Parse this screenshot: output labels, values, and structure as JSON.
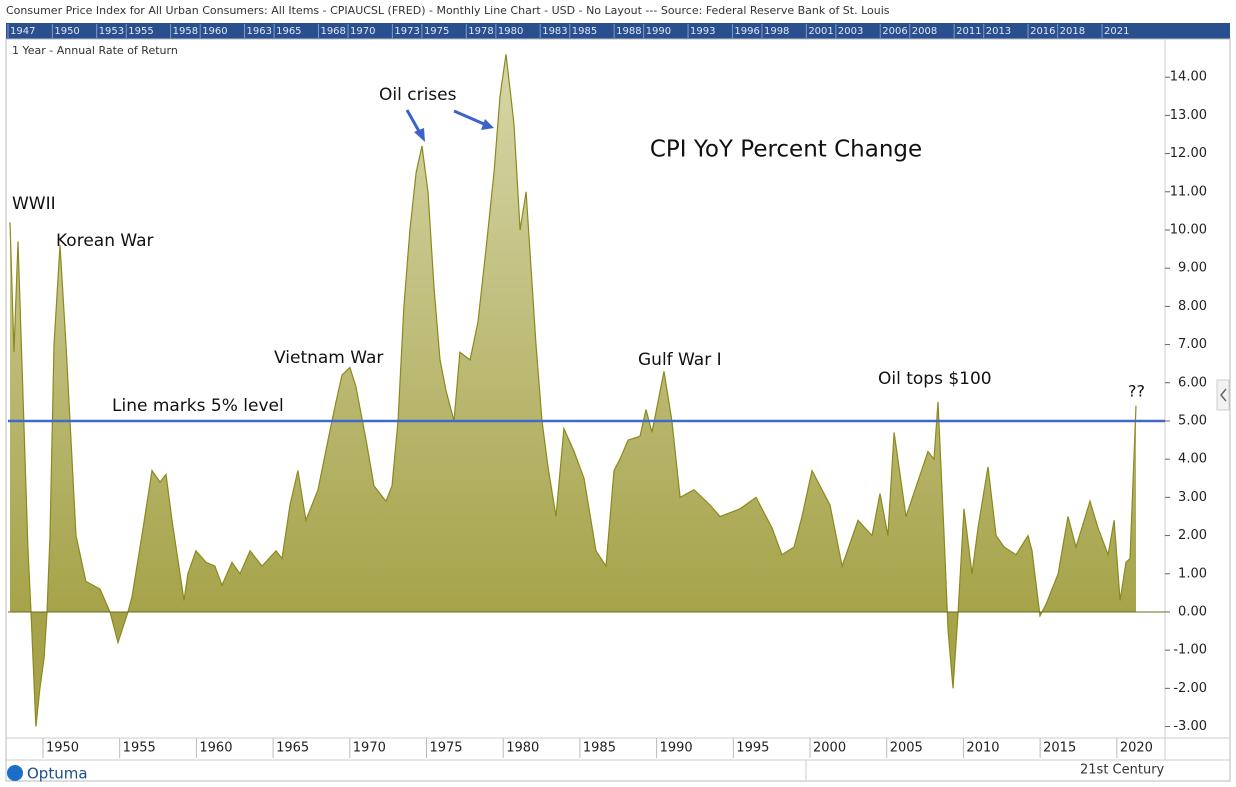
{
  "chart_data": {
    "type": "area",
    "header": "Consumer Price Index for All Urban Consumers: All Items - CPIAUCSL (FRED) - Monthly Line Chart - USD - No Layout --- Source: Federal Reserve Bank of St. Louis",
    "subtitle": "1 Year - Annual Rate of Return",
    "title": "CPI YoY Percent Change",
    "logo": "Optuma",
    "footer": "21st Century",
    "color": "#8a8a1e",
    "fill_top": "#d6d6a8",
    "fill_bottom": "#a6a34a",
    "reference_line": 5,
    "reference_color": "#4169c8",
    "navigator_ticks": [
      1947,
      1950,
      1953,
      1955,
      1958,
      1960,
      1963,
      1965,
      1968,
      1970,
      1973,
      1975,
      1978,
      1980,
      1983,
      1985,
      1988,
      1990,
      1993,
      1996,
      1998,
      2001,
      2003,
      2006,
      2008,
      2011,
      2013,
      2016,
      2018,
      2021
    ],
    "annotations": [
      "WWII",
      "Korean War",
      "Vietnam War",
      "Oil crises",
      "Line marks 5% level",
      "Gulf War I",
      "Oil tops $100",
      "??"
    ],
    "xlim": [
      1947.72,
      2023.14
    ],
    "xticks": [
      1950,
      1955,
      1960,
      1965,
      1970,
      1975,
      1980,
      1985,
      1990,
      1995,
      2000,
      2005,
      2010,
      2015,
      2020
    ],
    "ylim": [
      -3.3,
      15.0
    ],
    "yticks": [
      {
        "value": 14,
        "label": "14.00"
      },
      {
        "value": 13,
        "label": "13.00"
      },
      {
        "value": 12,
        "label": "12.00"
      },
      {
        "value": 11,
        "label": "11.00"
      },
      {
        "value": 10,
        "label": "10.00"
      },
      {
        "value": 9,
        "label": "9.00"
      },
      {
        "value": 8,
        "label": "8.00"
      },
      {
        "value": 7,
        "label": "7.00"
      },
      {
        "value": 6,
        "label": "6.00"
      },
      {
        "value": 5,
        "label": "5.00"
      },
      {
        "value": 4,
        "label": "4.00"
      },
      {
        "value": 3,
        "label": "3.00"
      },
      {
        "value": 2,
        "label": "2.00"
      },
      {
        "value": 1,
        "label": "1.00"
      },
      {
        "value": 0,
        "label": "0.00"
      },
      {
        "value": -1,
        "label": "-1.00"
      },
      {
        "value": -2,
        "label": "-2.00"
      },
      {
        "value": -3,
        "label": "-3.00"
      }
    ],
    "x": [
      1947.85,
      1948.11,
      1948.37,
      1949.02,
      1949.22,
      1949.54,
      1949.8,
      1950.07,
      1950.26,
      1950.46,
      1950.72,
      1951.11,
      1951.5,
      1952.15,
      1952.8,
      1953.72,
      1954.37,
      1954.89,
      1955.54,
      1955.8,
      1956.45,
      1957.11,
      1957.63,
      1958.02,
      1958.41,
      1959.19,
      1959.45,
      1959.97,
      1960.63,
      1961.21,
      1961.67,
      1962.32,
      1962.84,
      1963.5,
      1964.28,
      1965.19,
      1965.58,
      1966.1,
      1966.62,
      1967.14,
      1967.93,
      1968.58,
      1969.1,
      1969.49,
      1970.01,
      1970.4,
      1971.06,
      1971.58,
      1972.36,
      1972.75,
      1973.14,
      1973.53,
      1973.92,
      1974.32,
      1974.71,
      1975.1,
      1975.49,
      1975.88,
      1976.27,
      1976.79,
      1977.18,
      1977.84,
      1978.36,
      1978.88,
      1979.4,
      1979.79,
      1980.18,
      1980.7,
      1981.1,
      1981.49,
      1982.14,
      1982.53,
      1982.92,
      1983.44,
      1983.96,
      1984.62,
      1985.27,
      1986.05,
      1986.7,
      1987.22,
      1987.61,
      1988.14,
      1988.92,
      1989.31,
      1989.7,
      1990.48,
      1991.0,
      1991.53,
      1992.44,
      1993.48,
      1994.13,
      1995.44,
      1996.48,
      1997.52,
      1998.17,
      1998.96,
      1999.48,
      2000.13,
      2001.3,
      2002.09,
      2003.13,
      2004.04,
      2004.56,
      2005.08,
      2005.48,
      2006.26,
      2007.69,
      2008.08,
      2008.34,
      2008.74,
      2009.0,
      2009.32,
      2009.65,
      2010.04,
      2010.56,
      2010.95,
      2011.6,
      2012.13,
      2012.65,
      2013.43,
      2014.21,
      2014.47,
      2014.99,
      2015.38,
      2016.17,
      2016.82,
      2017.34,
      2018.25,
      2018.77,
      2019.43,
      2019.82,
      2020.21,
      2020.6,
      2020.86,
      2021.25
    ],
    "values": [
      10.2,
      6.8,
      9.7,
      1.7,
      0,
      -3,
      -2,
      -1.2,
      0,
      2,
      7,
      9.6,
      7,
      2,
      0.8,
      0.6,
      0,
      -0.8,
      0,
      0.4,
      2,
      3.7,
      3.4,
      3.6,
      2.4,
      0.3,
      1,
      1.6,
      1.3,
      1.2,
      0.7,
      1.3,
      1.0,
      1.6,
      1.2,
      1.6,
      1.4,
      2.8,
      3.7,
      2.4,
      3.2,
      4.5,
      5.5,
      6.2,
      6.4,
      5.9,
      4.5,
      3.3,
      2.9,
      3.3,
      5,
      8,
      10,
      11.5,
      12.2,
      11,
      8.5,
      6.6,
      5.8,
      5,
      6.8,
      6.6,
      7.6,
      9.5,
      11.5,
      13.5,
      14.6,
      12.8,
      10,
      11,
      7,
      5,
      3.8,
      2.5,
      4.8,
      4.2,
      3.5,
      1.6,
      1.2,
      3.7,
      4,
      4.5,
      4.6,
      5.3,
      4.7,
      6.3,
      5,
      3,
      3.2,
      2.8,
      2.5,
      2.7,
      3,
      2.2,
      1.5,
      1.7,
      2.5,
      3.7,
      2.8,
      1.2,
      2.4,
      2,
      3.1,
      2,
      4.7,
      2.5,
      4.2,
      4,
      5.5,
      2,
      -0.5,
      -2,
      0,
      2.7,
      1,
      2.2,
      3.8,
      2,
      1.7,
      1.5,
      2,
      1.6,
      -0.1,
      0.2,
      1,
      2.5,
      1.7,
      2.9,
      2.2,
      1.5,
      2.4,
      0.3,
      1.3,
      1.4,
      5.4
    ]
  }
}
